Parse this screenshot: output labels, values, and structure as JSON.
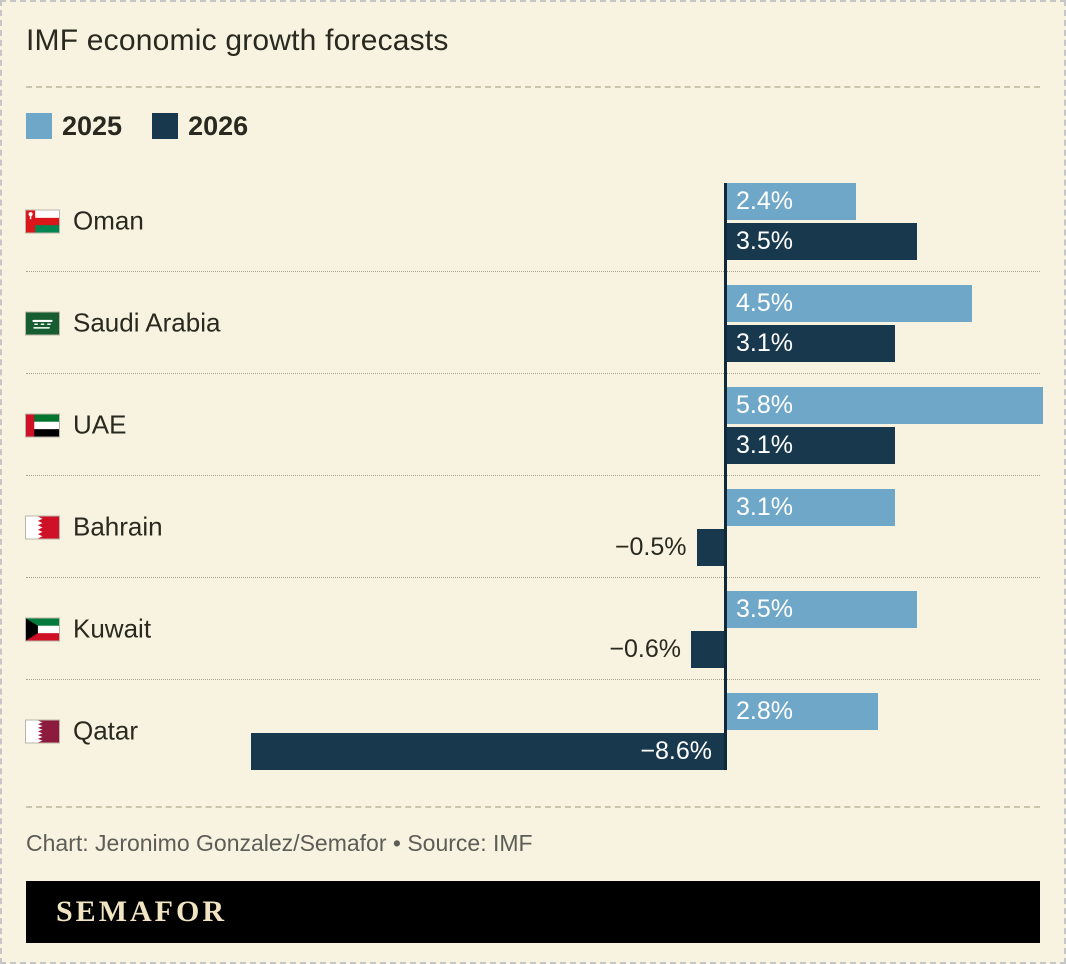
{
  "title": "IMF economic growth forecasts",
  "legend": {
    "items": [
      {
        "label": "2025",
        "color": "#6fa7c9"
      },
      {
        "label": "2026",
        "color": "#18384d"
      }
    ]
  },
  "chart_data": {
    "type": "bar",
    "orientation": "horizontal",
    "title": "IMF economic growth forecasts",
    "categories": [
      "Oman",
      "Saudi Arabia",
      "UAE",
      "Bahrain",
      "Kuwait",
      "Qatar"
    ],
    "series": [
      {
        "name": "2025",
        "color": "#6fa7c9",
        "values": [
          2.4,
          4.5,
          5.8,
          3.1,
          3.5,
          2.8
        ],
        "labels": [
          "2.4%",
          "4.5%",
          "5.8%",
          "3.1%",
          "3.5%",
          "2.8%"
        ]
      },
      {
        "name": "2026",
        "color": "#18384d",
        "values": [
          3.5,
          3.1,
          3.1,
          -0.5,
          -0.6,
          -8.6
        ],
        "labels": [
          "3.5%",
          "3.1%",
          "3.1%",
          "−0.5%",
          "−0.6%",
          "−8.6%"
        ]
      }
    ],
    "xlim": [
      -8.6,
      5.8
    ],
    "value_unit": "%",
    "legend_position": "top",
    "grid": false
  },
  "footer": {
    "credit": "Chart: Jeronimo Gonzalez/Semafor • Source: IMF",
    "brand": "SEMAFOR"
  }
}
